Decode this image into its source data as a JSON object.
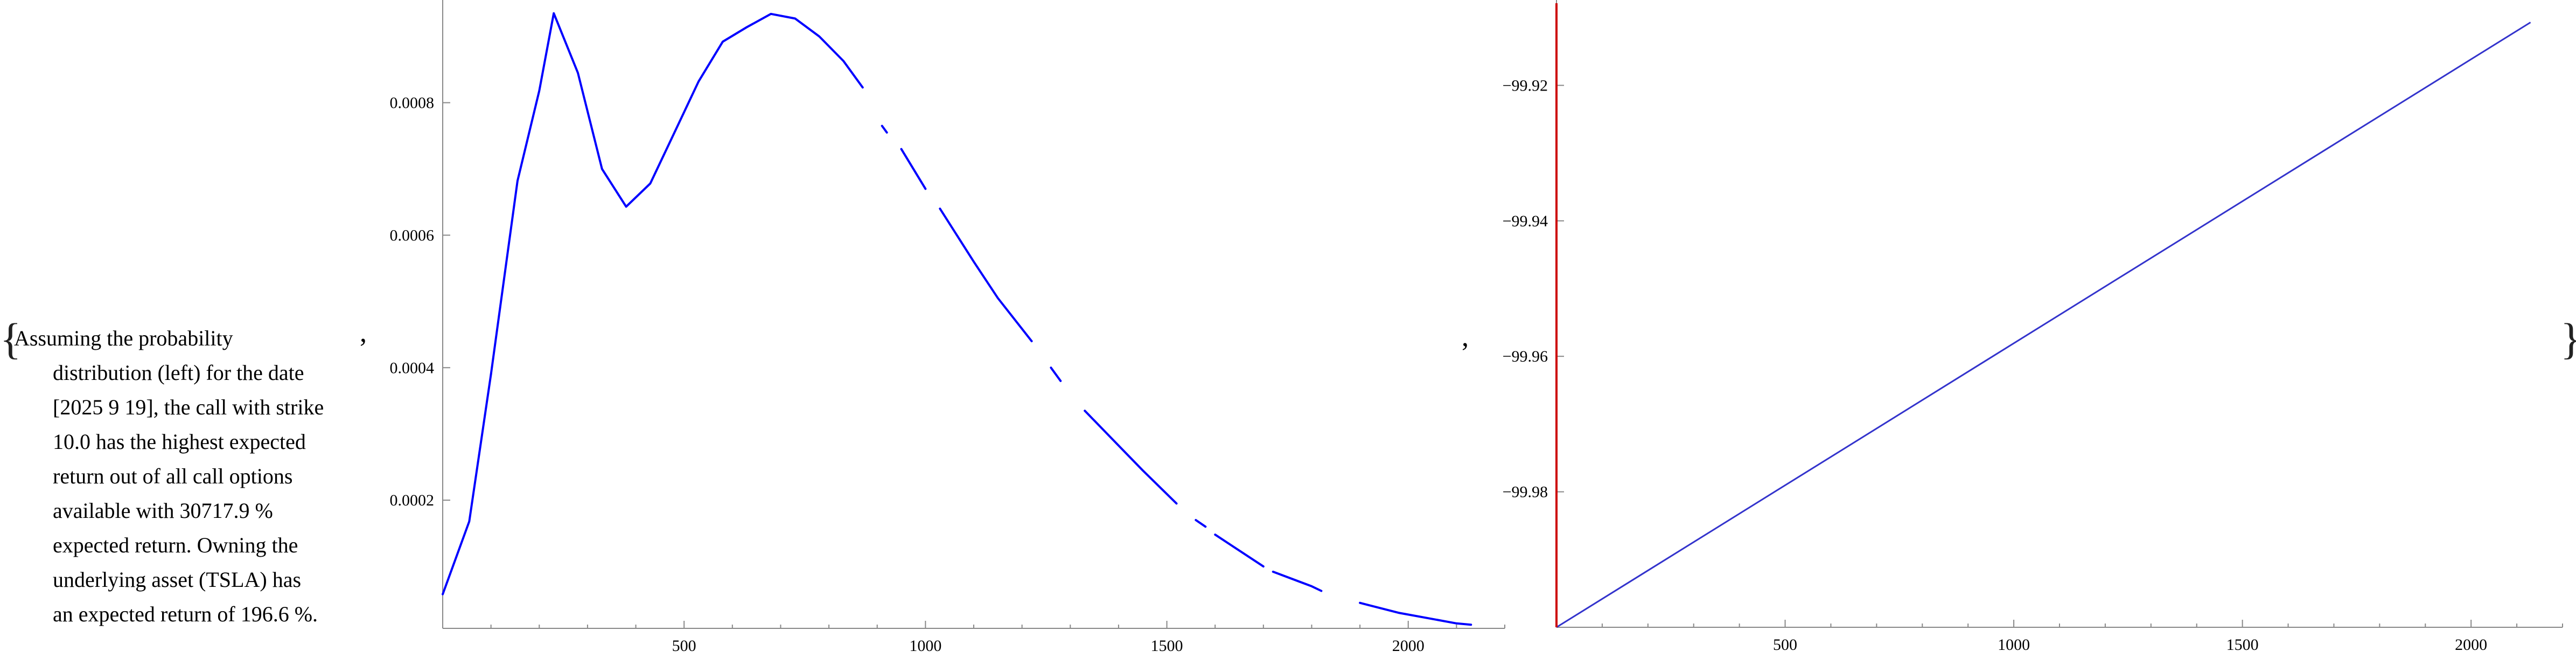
{
  "output": {
    "open_brace": "{",
    "close_brace": "}",
    "separator": ","
  },
  "description": {
    "lines": [
      "Assuming the probability",
      "distribution (left) for the date",
      "[2025 9 19], the call with strike",
      "10.0 has the highest expected",
      "return out of all call options",
      "available with 30717.9 %",
      "expected return. Owning the",
      "underlying asset (TSLA) has",
      "an expected return of 196.6 %."
    ]
  },
  "colors": {
    "density_line": "#0000ff",
    "return_line": "#3333cc",
    "vertical_marker": "#cc0000",
    "axis": "#888888"
  },
  "chart_data": [
    {
      "type": "line",
      "series": [
        {
          "segments": [
            [
              [
                0,
                5.8e-05
              ],
              [
                55,
                0.000168
              ],
              [
                100,
                0.00039
              ]
            ],
            [
              [
                100,
                0.00039
              ],
              [
                155,
                0.000682
              ],
              [
                200,
                0.000818
              ],
              [
                230,
                0.000935
              ],
              [
                280,
                0.000845
              ],
              [
                330,
                0.0007
              ],
              [
                380,
                0.000643
              ],
              [
                430,
                0.000678
              ],
              [
                480,
                0.000755
              ],
              [
                530,
                0.000832
              ],
              [
                580,
                0.000892
              ],
              [
                630,
                0.000914
              ],
              [
                680,
                0.000934
              ],
              [
                730,
                0.000927
              ],
              [
                780,
                0.0009
              ],
              [
                830,
                0.000863
              ],
              [
                870,
                0.000823
              ]
            ],
            [
              [
                910,
                0.000765
              ],
              [
                920,
                0.000755
              ]
            ],
            [
              [
                950,
                0.00073
              ],
              [
                1000,
                0.00067
              ]
            ],
            [
              [
                1030,
                0.00064
              ],
              [
                1100,
                0.00056
              ],
              [
                1150,
                0.000505
              ],
              [
                1220,
                0.00044
              ]
            ],
            [
              [
                1260,
                0.0004
              ],
              [
                1280,
                0.00038
              ]
            ],
            [
              [
                1330,
                0.000335
              ],
              [
                1390,
                0.00029
              ],
              [
                1450,
                0.000245
              ],
              [
                1520,
                0.000195
              ]
            ],
            [
              [
                1560,
                0.00017
              ],
              [
                1580,
                0.00016
              ]
            ],
            [
              [
                1600,
                0.000148
              ],
              [
                1700,
                0.0001
              ]
            ],
            [
              [
                1720,
                9.2e-05
              ],
              [
                1800,
                7e-05
              ],
              [
                1820,
                6.3e-05
              ]
            ],
            [
              [
                1900,
                4.5e-05
              ],
              [
                1980,
                3e-05
              ],
              [
                2100,
                1.4e-05
              ],
              [
                2130,
                1.2e-05
              ]
            ]
          ]
        }
      ],
      "x_ticks": [
        500,
        1000,
        1500,
        2000
      ],
      "y_ticks": [
        "0.0002",
        "0.0004",
        "0.0006",
        "0.0008"
      ],
      "y_tick_values": [
        0.0002,
        0.0004,
        0.0006,
        0.0008
      ],
      "xlim": [
        0,
        2200
      ],
      "ylim": [
        6.5e-06,
        0.000955
      ],
      "grid": false
    },
    {
      "type": "line",
      "series": [
        {
          "points": [
            [
              0,
              -100.0
            ],
            [
              2130,
              -99.9107
            ]
          ]
        }
      ],
      "vertical_marker_x": 0,
      "x_ticks": [
        500,
        1000,
        1500,
        2000
      ],
      "y_ticks": [
        "−99.92",
        "−99.94",
        "−99.96",
        "−99.98"
      ],
      "y_tick_values": [
        -99.92,
        -99.94,
        -99.96,
        -99.98
      ],
      "xlim": [
        0,
        2200
      ],
      "ylim": [
        -100.0,
        -99.9074
      ],
      "grid": false
    }
  ]
}
